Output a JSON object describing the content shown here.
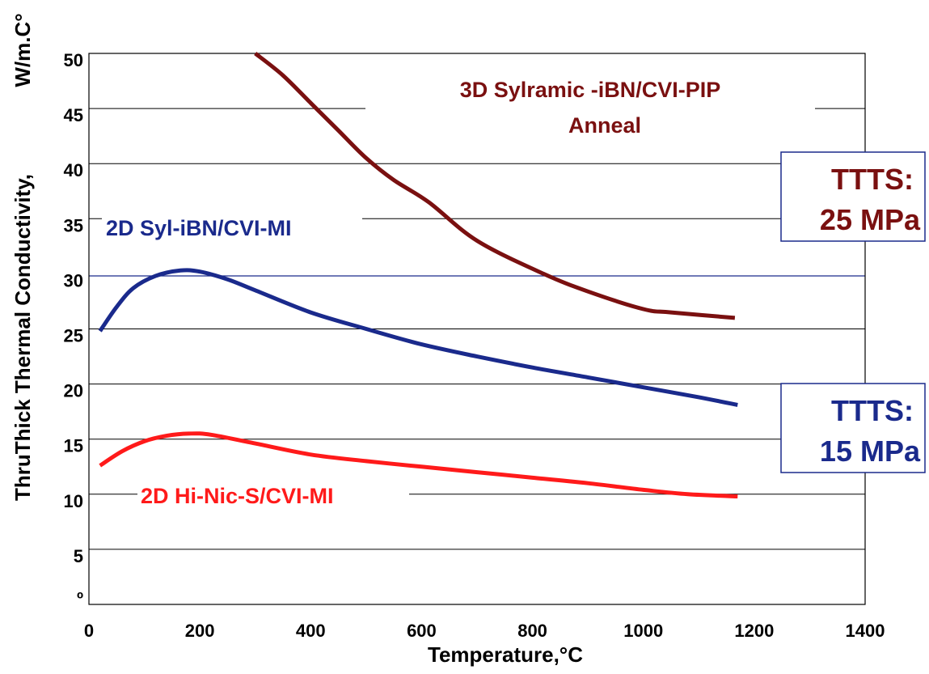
{
  "chart_data": {
    "type": "line",
    "xlabel": "Temperature,°C",
    "ylabel_main": "ThruThick Thermal Conductivity,",
    "ylabel_unit": "W/m.C°",
    "xlim": [
      0,
      1400
    ],
    "ylim": [
      0,
      50
    ],
    "x_ticks": [
      "0",
      "200",
      "400",
      "600",
      "800",
      "1000",
      "1200",
      "1400"
    ],
    "y_ticks": [
      "º",
      "5",
      "10",
      "15",
      "20",
      "25",
      "30",
      "35",
      "40",
      "45",
      "50"
    ],
    "grid": "horizontal",
    "series": [
      {
        "name": "3D Sylramic -iBN/CVI-PIP",
        "name_line2": "Anneal",
        "color": "#7a1010",
        "points": [
          [
            300,
            50
          ],
          [
            350,
            48
          ],
          [
            400,
            45.5
          ],
          [
            450,
            43
          ],
          [
            500,
            40.5
          ],
          [
            550,
            38.5
          ],
          [
            613,
            36.5
          ],
          [
            700,
            33
          ],
          [
            820,
            30
          ],
          [
            900,
            28.4
          ],
          [
            1000,
            26.8
          ],
          [
            1050,
            26.5
          ],
          [
            1165,
            26
          ]
        ]
      },
      {
        "name": "2D Syl-iBN/CVI-MI",
        "color": "#1a2a8c",
        "points": [
          [
            20,
            24.8
          ],
          [
            50,
            27
          ],
          [
            80,
            28.7
          ],
          [
            120,
            29.8
          ],
          [
            165,
            30.3
          ],
          [
            200,
            30.2
          ],
          [
            250,
            29.5
          ],
          [
            300,
            28.5
          ],
          [
            400,
            26.5
          ],
          [
            500,
            25
          ],
          [
            600,
            23.6
          ],
          [
            700,
            22.5
          ],
          [
            800,
            21.5
          ],
          [
            900,
            20.6
          ],
          [
            1000,
            19.7
          ],
          [
            1100,
            18.8
          ],
          [
            1170,
            18.1
          ]
        ]
      },
      {
        "name": "2D Hi-Nic-S/CVI-MI",
        "color": "#ff1a1a",
        "points": [
          [
            20,
            12.6
          ],
          [
            60,
            13.9
          ],
          [
            100,
            14.8
          ],
          [
            140,
            15.3
          ],
          [
            180,
            15.5
          ],
          [
            220,
            15.4
          ],
          [
            300,
            14.6
          ],
          [
            400,
            13.6
          ],
          [
            500,
            13
          ],
          [
            600,
            12.5
          ],
          [
            700,
            12
          ],
          [
            800,
            11.5
          ],
          [
            900,
            11
          ],
          [
            1000,
            10.4
          ],
          [
            1080,
            10
          ],
          [
            1170,
            9.8
          ]
        ]
      }
    ],
    "annotations": [
      {
        "line1": "TTTS:",
        "line2": "25 MPa",
        "color": "#7a1010",
        "border": "#1a2a8c"
      },
      {
        "line1": "TTTS:",
        "line2": "15 MPa",
        "color": "#1a2a8c",
        "border": "#1a2a8c"
      }
    ]
  }
}
